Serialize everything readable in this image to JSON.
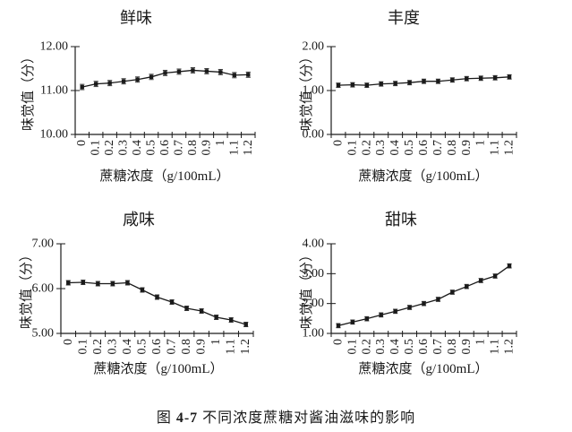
{
  "caption": {
    "prefix": "图",
    "number": "4-7",
    "text": "不同浓度蔗糖对酱油滋味的影响"
  },
  "chart_data": [
    {
      "id": "umami",
      "type": "line",
      "title": "鲜味",
      "xlabel": "蔗糖浓度（g/100mL）",
      "ylabel": "味觉值（分）",
      "categories": [
        "0",
        "0.1",
        "0.2",
        "0.3",
        "0.4",
        "0.5",
        "0.6",
        "0.7",
        "0.8",
        "0.9",
        "1",
        "1.1",
        "1.2"
      ],
      "values": [
        11.08,
        11.15,
        11.17,
        11.21,
        11.25,
        11.31,
        11.4,
        11.43,
        11.46,
        11.44,
        11.42,
        11.35,
        11.36
      ],
      "error": 0.06,
      "ylim": [
        10,
        12
      ],
      "yticks": [
        "10.00",
        "11.00",
        "12.00"
      ],
      "grid": false,
      "legend": null,
      "marker": "square",
      "error_bars": true,
      "color": "#1a1a1a"
    },
    {
      "id": "richness",
      "type": "line",
      "title": "丰度",
      "xlabel": "蔗糖浓度（g/100mL）",
      "ylabel": "味觉值（分）",
      "categories": [
        "0",
        "0.1",
        "0.2",
        "0.3",
        "0.4",
        "0.5",
        "0.6",
        "0.7",
        "0.8",
        "0.9",
        "1",
        "1.1",
        "1.2"
      ],
      "values": [
        1.12,
        1.13,
        1.12,
        1.15,
        1.16,
        1.18,
        1.21,
        1.21,
        1.24,
        1.27,
        1.28,
        1.29,
        1.31
      ],
      "error": 0.05,
      "ylim": [
        0,
        2
      ],
      "yticks": [
        "0.00",
        "1.00",
        "2.00"
      ],
      "grid": false,
      "legend": null,
      "marker": "square",
      "error_bars": true,
      "color": "#1a1a1a"
    },
    {
      "id": "saltiness",
      "type": "line",
      "title": "咸味",
      "xlabel": "蔗糖浓度（g/100mL）",
      "ylabel": "味觉值（分）",
      "categories": [
        "0",
        "0.1",
        "0.2",
        "0.3",
        "0.4",
        "0.5",
        "0.6",
        "0.7",
        "0.8",
        "0.9",
        "1",
        "1.1",
        "1.2"
      ],
      "values": [
        6.13,
        6.14,
        6.11,
        6.11,
        6.13,
        5.97,
        5.81,
        5.7,
        5.56,
        5.5,
        5.36,
        5.3,
        5.2
      ],
      "error": 0.05,
      "ylim": [
        5,
        7
      ],
      "yticks": [
        "5.00",
        "6.00",
        "7.00"
      ],
      "grid": false,
      "legend": null,
      "marker": "square",
      "error_bars": true,
      "color": "#1a1a1a"
    },
    {
      "id": "sweetness",
      "type": "line",
      "title": "甜味",
      "xlabel": "蔗糖浓度（g/100mL）",
      "ylabel": "味觉值（分）",
      "categories": [
        "0",
        "0.1",
        "0.2",
        "0.3",
        "0.4",
        "0.5",
        "0.6",
        "0.7",
        "0.8",
        "0.9",
        "1",
        "1.1",
        "1.2"
      ],
      "values": [
        1.26,
        1.38,
        1.49,
        1.62,
        1.74,
        1.87,
        2.0,
        2.14,
        2.38,
        2.57,
        2.77,
        2.92,
        3.26
      ],
      "error": 0.07,
      "ylim": [
        1,
        4
      ],
      "yticks": [
        "1.00",
        "2.00",
        "3.00",
        "4.00"
      ],
      "grid": false,
      "legend": null,
      "marker": "square",
      "error_bars": true,
      "color": "#1a1a1a"
    }
  ]
}
